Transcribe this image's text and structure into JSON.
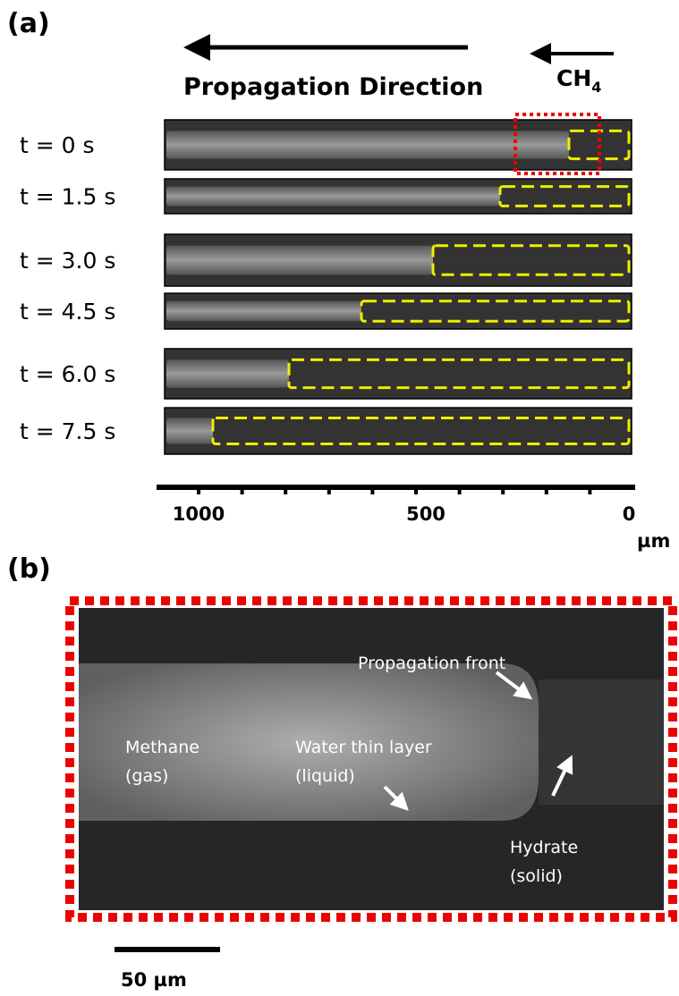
{
  "panel_a": {
    "label": "(a)",
    "direction": "Propagation Direction",
    "gas": {
      "text": "CH",
      "subscript": "4"
    },
    "times": [
      "t = 0 s",
      "t = 1.5 s",
      "t = 3.0 s",
      "t = 4.5 s",
      "t = 6.0 s",
      "t = 7.5 s"
    ],
    "scale": {
      "ticks": [
        "1000",
        "500",
        "0"
      ],
      "unit": "µm"
    }
  },
  "panel_b": {
    "label": "(b)",
    "front": "Propagation front",
    "gas": [
      "Methane",
      "(gas)"
    ],
    "water": [
      "Water thin layer",
      "(liquid)"
    ],
    "hydrate": [
      "Hydrate",
      "(solid)"
    ],
    "scale_bar": "50 µm"
  }
}
